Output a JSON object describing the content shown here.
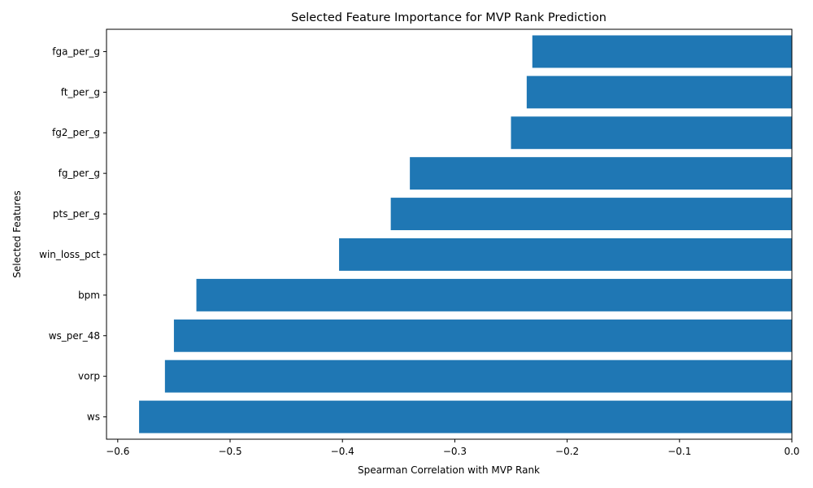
{
  "chart_data": {
    "type": "bar",
    "orientation": "horizontal",
    "title": "Selected Feature Importance for MVP Rank Prediction",
    "xlabel": "Spearman Correlation with MVP Rank",
    "ylabel": "Selected Features",
    "categories": [
      "ws",
      "vorp",
      "ws_per_48",
      "bpm",
      "win_loss_pct",
      "pts_per_g",
      "fg_per_g",
      "fg2_per_g",
      "ft_per_g",
      "fga_per_g"
    ],
    "values": [
      -0.581,
      -0.558,
      -0.55,
      -0.53,
      -0.403,
      -0.357,
      -0.34,
      -0.25,
      -0.236,
      -0.231
    ],
    "xlim": [
      -0.61,
      0.0
    ],
    "xticks": [
      -0.6,
      -0.5,
      -0.4,
      -0.3,
      -0.2,
      -0.1,
      0.0
    ],
    "xtick_labels": [
      "−0.6",
      "−0.5",
      "−0.4",
      "−0.3",
      "−0.2",
      "−0.1",
      "0.0"
    ],
    "bar_color": "#1f77b4",
    "grid": false
  }
}
